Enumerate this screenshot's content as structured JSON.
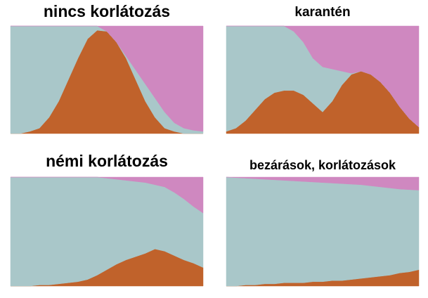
{
  "chart_data": [
    {
      "type": "area",
      "stacked": true,
      "title": "nincs korlátozás",
      "ylim": [
        0,
        100
      ],
      "series": [
        {
          "color": "#c0622b",
          "values": [
            0,
            0,
            2,
            5,
            15,
            30,
            50,
            70,
            88,
            96,
            95,
            85,
            70,
            50,
            30,
            15,
            5,
            2,
            0,
            0,
            0
          ]
        },
        {
          "color": "#a9c7c9",
          "values": [
            100,
            100,
            98,
            95,
            85,
            70,
            50,
            30,
            12,
            4,
            0,
            0,
            2,
            9,
            16,
            18,
            15,
            8,
            5,
            3,
            2
          ]
        },
        {
          "color": "#cf88c0",
          "values": [
            0,
            0,
            0,
            0,
            0,
            0,
            0,
            0,
            0,
            0,
            5,
            15,
            28,
            41,
            54,
            67,
            80,
            90,
            95,
            97,
            98
          ]
        }
      ]
    },
    {
      "type": "area",
      "stacked": true,
      "title": "karantén",
      "ylim": [
        0,
        100
      ],
      "series": [
        {
          "color": "#c0622b",
          "values": [
            2,
            5,
            12,
            22,
            32,
            38,
            40,
            40,
            36,
            28,
            20,
            30,
            45,
            55,
            58,
            55,
            48,
            38,
            25,
            14,
            6
          ]
        },
        {
          "color": "#a9c7c9",
          "values": [
            98,
            95,
            88,
            78,
            68,
            62,
            60,
            55,
            49,
            42,
            42,
            30,
            13,
            1,
            0,
            0,
            0,
            0,
            0,
            0,
            0
          ]
        },
        {
          "color": "#cf88c0",
          "values": [
            0,
            0,
            0,
            0,
            0,
            0,
            0,
            5,
            15,
            30,
            38,
            40,
            42,
            44,
            42,
            45,
            52,
            62,
            75,
            86,
            94
          ]
        }
      ]
    },
    {
      "type": "area",
      "stacked": true,
      "title": "némi korlátozás",
      "ylim": [
        0,
        100
      ],
      "series": [
        {
          "color": "#c0622b",
          "values": [
            0,
            0,
            0,
            1,
            1,
            2,
            3,
            4,
            6,
            10,
            15,
            20,
            24,
            27,
            30,
            34,
            32,
            28,
            24,
            21,
            17
          ]
        },
        {
          "color": "#a9c7c9",
          "values": [
            100,
            100,
            100,
            99,
            99,
            98,
            97,
            96,
            94,
            90,
            84,
            78,
            73,
            69,
            65,
            59,
            59,
            58,
            56,
            52,
            50
          ]
        },
        {
          "color": "#cf88c0",
          "values": [
            0,
            0,
            0,
            0,
            0,
            0,
            0,
            0,
            0,
            0,
            1,
            2,
            3,
            4,
            5,
            7,
            9,
            14,
            20,
            27,
            33
          ]
        }
      ]
    },
    {
      "type": "area",
      "stacked": true,
      "title": "bezárások, korlátozások",
      "ylim": [
        0,
        100
      ],
      "series": [
        {
          "color": "#c0622b",
          "values": [
            0,
            0,
            1,
            1,
            2,
            2,
            3,
            3,
            3,
            4,
            4,
            5,
            5,
            6,
            7,
            8,
            9,
            10,
            12,
            13,
            15
          ]
        },
        {
          "color": "#a9c7c9",
          "values": [
            100,
            99.5,
            98,
            97.5,
            96,
            95.5,
            94,
            93.5,
            93,
            91.5,
            91,
            89.5,
            89,
            87.5,
            86,
            84,
            82,
            80,
            77,
            75.5,
            73
          ]
        },
        {
          "color": "#cf88c0",
          "values": [
            0,
            0.5,
            1,
            1.5,
            2,
            2.5,
            3,
            3.5,
            4,
            4.5,
            5,
            5.5,
            6,
            6.5,
            7,
            8,
            9,
            10,
            11,
            11.5,
            12
          ]
        }
      ]
    }
  ]
}
